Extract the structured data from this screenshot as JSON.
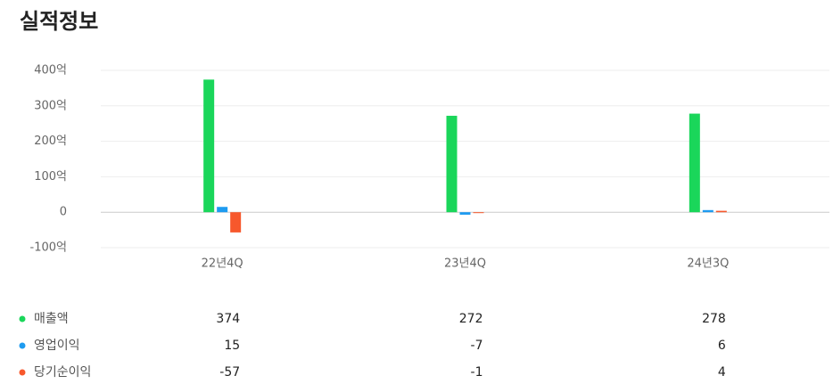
{
  "chart_data": {
    "type": "bar",
    "title": "실적정보",
    "categories": [
      "22년4Q",
      "23년4Q",
      "24년3Q"
    ],
    "series": [
      {
        "name": "매출액",
        "color": "#1ad65a",
        "values": [
          374,
          272,
          278
        ]
      },
      {
        "name": "영업이익",
        "color": "#1e9bf0",
        "values": [
          15,
          -7,
          6
        ]
      },
      {
        "name": "당기순이익",
        "color": "#f7582c",
        "values": [
          -57,
          -1,
          4
        ]
      }
    ],
    "ylim": [
      -100,
      400
    ],
    "yticks": [
      {
        "value": -100,
        "label": "-100억"
      },
      0,
      {
        "value": 100,
        "label": "100억"
      },
      {
        "value": 200,
        "label": "200억"
      },
      {
        "value": 300,
        "label": "300억"
      },
      {
        "value": 400,
        "label": "400억"
      }
    ],
    "grid": true
  }
}
